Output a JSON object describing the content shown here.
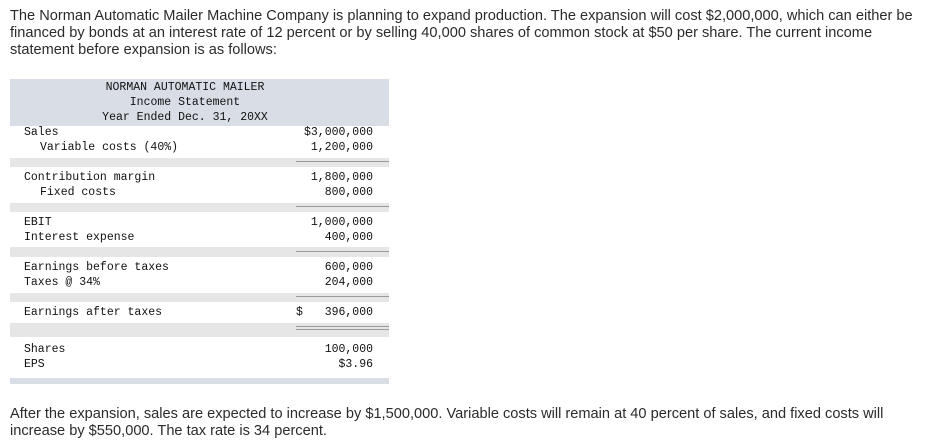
{
  "intro_text": "The Norman Automatic Mailer Machine Company is planning to expand production. The expansion will cost $2,000,000, which can either be financed by bonds at an interest rate of 12 percent or by selling 40,000 shares of common stock at $50 per share. The current income statement before expansion is as follows:",
  "statement": {
    "company": "NORMAN AUTOMATIC MAILER",
    "title": "Income Statement",
    "period": "Year Ended Dec. 31, 20XX",
    "rows": [
      {
        "label": "Sales",
        "value": "$3,000,000"
      },
      {
        "label": "Variable costs (40%)",
        "value": "1,200,000"
      },
      {
        "label": "Contribution margin",
        "value": "1,800,000"
      },
      {
        "label": "Fixed costs",
        "value": "800,000"
      },
      {
        "label": "EBIT",
        "value": "1,000,000"
      },
      {
        "label": "Interest expense",
        "value": "400,000"
      },
      {
        "label": "Earnings before taxes",
        "value": "600,000"
      },
      {
        "label": "Taxes @ 34%",
        "value": "204,000"
      },
      {
        "label": "Earnings after taxes",
        "currency": "$",
        "value": "396,000"
      },
      {
        "label": "Shares",
        "value": "100,000"
      },
      {
        "label": "EPS",
        "value": "$3.96"
      }
    ]
  },
  "outro_text": "After the expansion, sales are expected to increase by $1,500,000. Variable costs will remain at 40 percent of sales, and fixed costs will increase by $550,000. The tax rate is 34 percent.",
  "colors": {
    "header_bg": "#d8dde6",
    "band_bg": "#e6e6e6",
    "text": "#2b2b2b"
  }
}
